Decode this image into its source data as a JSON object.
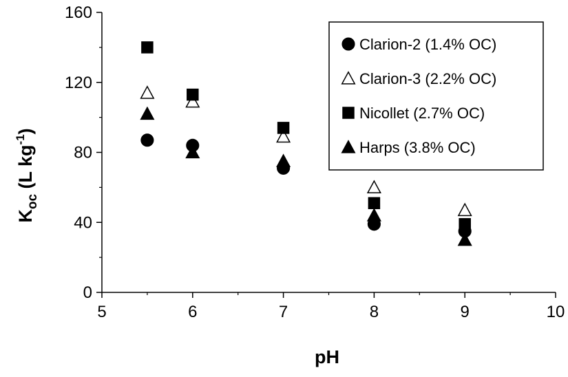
{
  "chart_data": {
    "type": "scatter",
    "title": "",
    "xlabel": "pH",
    "ylabel": {
      "main": "K",
      "sub": "oc",
      "unit_open": " (L kg",
      "sup": "-1",
      "unit_close": ")"
    },
    "xlim": [
      5,
      10
    ],
    "ylim": [
      0,
      160
    ],
    "xticks": [
      "5",
      "6",
      "7",
      "8",
      "9",
      "10"
    ],
    "yticks": [
      "0",
      "40",
      "80",
      "120",
      "160"
    ],
    "grid": false,
    "legend_position": "top-right",
    "series": [
      {
        "name": "Clarion-2 (1.4% OC)",
        "marker": "circle",
        "filled": true,
        "color": "#000000",
        "points": [
          [
            5.5,
            87
          ],
          [
            6,
            84
          ],
          [
            7,
            71
          ],
          [
            8,
            39
          ],
          [
            9,
            35
          ]
        ]
      },
      {
        "name": "Clarion-3 (2.2% OC)",
        "marker": "triangle",
        "filled": false,
        "color": "#000000",
        "points": [
          [
            5.5,
            114
          ],
          [
            6,
            109
          ],
          [
            7,
            89
          ],
          [
            8,
            60
          ],
          [
            9,
            47
          ]
        ]
      },
      {
        "name": "Nicollet (2.7% OC)",
        "marker": "square",
        "filled": true,
        "color": "#000000",
        "points": [
          [
            5.5,
            140
          ],
          [
            6,
            113
          ],
          [
            7,
            94
          ],
          [
            8,
            51
          ],
          [
            9,
            39
          ]
        ]
      },
      {
        "name": "Harps (3.8% OC)",
        "marker": "triangle",
        "filled": true,
        "color": "#000000",
        "points": [
          [
            5.5,
            102
          ],
          [
            6,
            80
          ],
          [
            7,
            75
          ],
          [
            8,
            44
          ],
          [
            9,
            30
          ]
        ]
      }
    ]
  }
}
